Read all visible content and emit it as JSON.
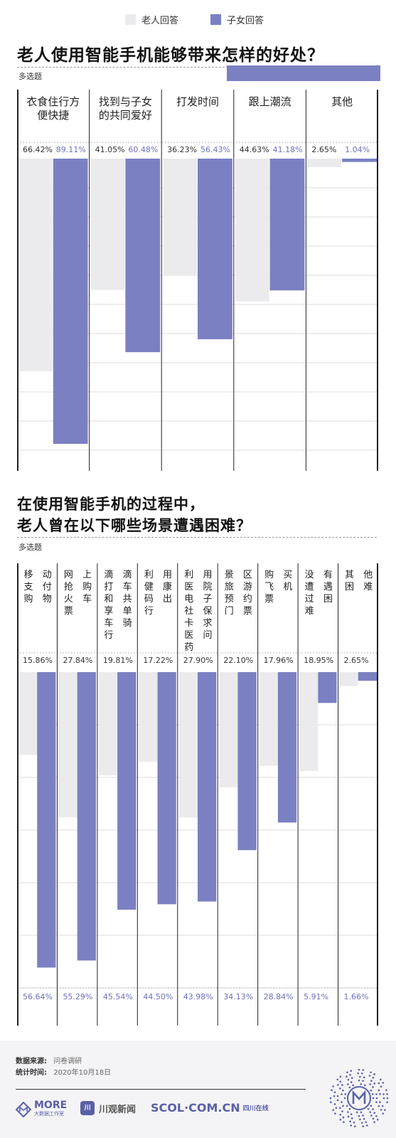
{
  "legend": {
    "old_label": "老人回答",
    "child_label": "子女回答",
    "old_color": "#ebebed",
    "child_color": "#7b80c2"
  },
  "chart_data": [
    {
      "type": "bar",
      "title": "老人使用智能手机能够带来怎样的好处？",
      "subtitle": "多选题",
      "categories": [
        "衣食住行方便快捷",
        "找到与子女的共同爱好",
        "打发时间",
        "跟上潮流",
        "其他"
      ],
      "series": [
        {
          "name": "老人回答",
          "values": [
            66.42,
            41.05,
            36.23,
            44.63,
            2.65
          ]
        },
        {
          "name": "子女回答",
          "values": [
            89.11,
            60.48,
            56.43,
            41.18,
            1.04
          ]
        }
      ],
      "value_labels": {
        "old": [
          "66.42%",
          "41.05%",
          "36.23%",
          "44.63%",
          "2.65%"
        ],
        "child": [
          "89.11%",
          "60.48%",
          "56.43%",
          "41.18%",
          "1.04%"
        ]
      },
      "ylim": [
        0,
        100
      ],
      "orientation": "downward"
    },
    {
      "type": "bar",
      "title_lines": [
        "在使用智能手机的过程中，",
        "老人曾在以下哪些场景遭遇困难？"
      ],
      "subtitle": "多选题",
      "categories_old": [
        "移动支付购物",
        "网上购火车票",
        "滴滴打车共享单车骑行",
        "利用健康码出行",
        "利用医院电子社保卡求医问药",
        "景区旅游预约门票",
        "购买机飞票",
        "没有遭遇过困难",
        "其他困难"
      ],
      "categories_child": [
        "动付物",
        "上购车",
        "滴车共单骑",
        "用康出",
        "用院子保求问",
        "区游约票",
        "买机",
        "有遇困",
        "他难"
      ],
      "categories": [
        "移支购",
        "网抢火票",
        "滴打和享车行",
        "利健码行",
        "利医电社卡医药",
        "景旅预门",
        "购飞票",
        "没遭过难",
        "其困"
      ],
      "series": [
        {
          "name": "老人回答",
          "values": [
            15.86,
            27.84,
            19.81,
            17.22,
            27.9,
            22.1,
            17.96,
            18.95,
            2.65
          ]
        },
        {
          "name": "子女回答",
          "values": [
            56.64,
            55.29,
            45.54,
            44.5,
            43.98,
            34.13,
            28.84,
            5.91,
            1.66
          ]
        }
      ],
      "value_labels": {
        "old": [
          "15.86%",
          "27.84%",
          "19.81%",
          "17.22%",
          "27.90%",
          "22.10%",
          "17.96%",
          "18.95%",
          "2.65%"
        ],
        "child": [
          "56.64%",
          "55.29%",
          "45.54%",
          "44.50%",
          "43.98%",
          "34.13%",
          "28.84%",
          "5.91%",
          "1.66%"
        ]
      },
      "ylim": [
        0,
        60
      ],
      "orientation": "downward"
    }
  ],
  "footer": {
    "source_key": "数据来源:",
    "source_val": "问卷调研",
    "time_key": "统计时间:",
    "time_val": "2020年10月18日",
    "logo_more": "MORE",
    "logo_more_sub": "大数据工作室",
    "logo_chuan": "川观新闻",
    "logo_scol": "SCOL·COM.CN",
    "logo_scol_sub": "四川在线"
  }
}
